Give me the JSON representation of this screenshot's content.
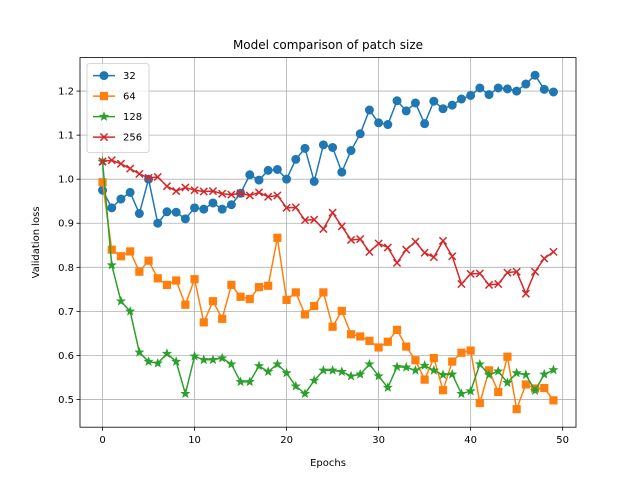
{
  "chart_data": {
    "type": "line",
    "title": "Model comparison of patch size",
    "xlabel": "Epochs",
    "ylabel": "Validation loss",
    "xlim": [
      -2.45,
      51.45
    ],
    "ylim": [
      0.437,
      1.276
    ],
    "xticks": [
      0,
      10,
      20,
      30,
      40,
      50
    ],
    "yticks": [
      0.5,
      0.6,
      0.7,
      0.8,
      0.9,
      1.0,
      1.1,
      1.2
    ],
    "xtick_labels": [
      "0",
      "10",
      "20",
      "30",
      "40",
      "50"
    ],
    "ytick_labels": [
      "0.5",
      "0.6",
      "0.7",
      "0.8",
      "0.9",
      "1.0",
      "1.1",
      "1.2"
    ],
    "grid": true,
    "legend_position": "top-left",
    "x": [
      0,
      1,
      2,
      3,
      4,
      5,
      6,
      7,
      8,
      9,
      10,
      11,
      12,
      13,
      14,
      15,
      16,
      17,
      18,
      19,
      20,
      21,
      22,
      23,
      24,
      25,
      26,
      27,
      28,
      29,
      30,
      31,
      32,
      33,
      34,
      35,
      36,
      37,
      38,
      39,
      40,
      41,
      42,
      43,
      44,
      45,
      46,
      47,
      48,
      49
    ],
    "series": [
      {
        "name": "32",
        "color": "#1f77b4",
        "marker": "circle",
        "values": [
          0.975,
          0.935,
          0.955,
          0.97,
          0.922,
          1.0,
          0.9,
          0.926,
          0.925,
          0.91,
          0.935,
          0.932,
          0.946,
          0.932,
          0.942,
          0.968,
          1.01,
          0.998,
          1.02,
          1.022,
          1.0,
          1.045,
          1.07,
          0.995,
          1.078,
          1.072,
          1.016,
          1.065,
          1.103,
          1.157,
          1.128,
          1.124,
          1.178,
          1.155,
          1.173,
          1.126,
          1.177,
          1.16,
          1.168,
          1.182,
          1.19,
          1.207,
          1.192,
          1.207,
          1.205,
          1.2,
          1.216,
          1.236,
          1.204,
          1.198
        ]
      },
      {
        "name": "64",
        "color": "#ff7f0e",
        "marker": "square",
        "values": [
          0.993,
          0.84,
          0.825,
          0.836,
          0.79,
          0.815,
          0.775,
          0.76,
          0.77,
          0.715,
          0.773,
          0.675,
          0.723,
          0.683,
          0.76,
          0.733,
          0.728,
          0.755,
          0.758,
          0.867,
          0.726,
          0.743,
          0.693,
          0.712,
          0.743,
          0.665,
          0.701,
          0.648,
          0.643,
          0.633,
          0.618,
          0.631,
          0.658,
          0.62,
          0.589,
          0.545,
          0.594,
          0.521,
          0.586,
          0.606,
          0.611,
          0.492,
          0.566,
          0.517,
          0.597,
          0.478,
          0.534,
          0.525,
          0.526,
          0.498
        ]
      },
      {
        "name": "128",
        "color": "#2ca02c",
        "marker": "star",
        "values": [
          1.04,
          0.805,
          0.723,
          0.7,
          0.607,
          0.586,
          0.582,
          0.604,
          0.586,
          0.513,
          0.598,
          0.59,
          0.59,
          0.594,
          0.58,
          0.54,
          0.54,
          0.576,
          0.563,
          0.58,
          0.56,
          0.53,
          0.513,
          0.543,
          0.566,
          0.566,
          0.563,
          0.553,
          0.557,
          0.58,
          0.553,
          0.527,
          0.574,
          0.573,
          0.566,
          0.577,
          0.566,
          0.556,
          0.557,
          0.513,
          0.519,
          0.58,
          0.556,
          0.564,
          0.538,
          0.56,
          0.556,
          0.52,
          0.557,
          0.567
        ]
      },
      {
        "name": "256",
        "color": "#d62728",
        "marker": "x",
        "values": [
          1.04,
          1.043,
          1.035,
          1.024,
          1.012,
          1.003,
          1.005,
          0.984,
          0.973,
          0.981,
          0.975,
          0.972,
          0.973,
          0.967,
          0.965,
          0.968,
          0.963,
          0.97,
          0.96,
          0.963,
          0.935,
          0.936,
          0.907,
          0.908,
          0.887,
          0.924,
          0.893,
          0.862,
          0.864,
          0.835,
          0.854,
          0.845,
          0.81,
          0.84,
          0.858,
          0.833,
          0.823,
          0.86,
          0.825,
          0.762,
          0.785,
          0.786,
          0.76,
          0.762,
          0.788,
          0.79,
          0.74,
          0.79,
          0.82,
          0.835
        ]
      }
    ]
  }
}
